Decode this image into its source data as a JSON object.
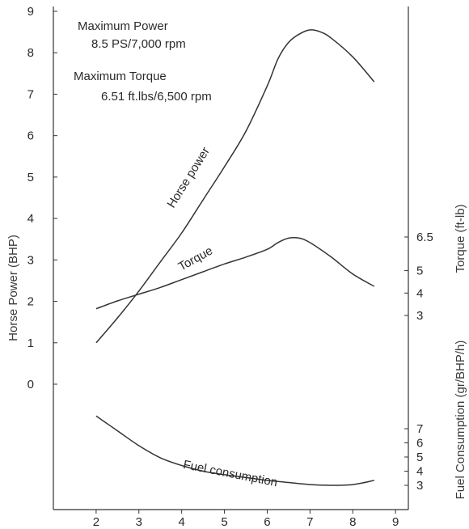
{
  "chart_data": {
    "type": "line",
    "x_axis": {
      "ticks": [
        "2",
        "3",
        "4",
        "5",
        "6",
        "7",
        "8",
        "9"
      ],
      "range": [
        1,
        9.3
      ]
    },
    "left_axis": {
      "label": "Horse Power (BHP)",
      "ticks": [
        "0",
        "1",
        "2",
        "3",
        "4",
        "5",
        "6",
        "7",
        "8",
        "9"
      ],
      "range": [
        0,
        9
      ]
    },
    "torque_axis": {
      "label": "Torque (ft-lb)",
      "ticks": [
        "3",
        "4",
        "5",
        "6.5"
      ],
      "range": [
        3,
        6.5
      ]
    },
    "fuel_axis": {
      "label": "Fuel Consumption (gr/BHP/h)",
      "ticks": [
        "3",
        "4",
        "5",
        "6",
        "7"
      ],
      "range": [
        3,
        7
      ]
    },
    "annotations": {
      "max_power_title": "Maximum Power",
      "max_power_value": "8.5 PS/7,000 rpm",
      "max_torque_title": "Maximum Torque",
      "max_torque_value": "6.51 ft.lbs/6,500 rpm"
    },
    "series": [
      {
        "name": "Horse power",
        "axis": "left",
        "x": [
          2,
          2.5,
          3,
          3.5,
          4,
          4.5,
          5,
          5.5,
          6,
          6.25,
          6.5,
          6.75,
          7,
          7.25,
          7.5,
          8,
          8.5
        ],
        "y": [
          1.0,
          1.6,
          2.25,
          2.95,
          3.65,
          4.45,
          5.25,
          6.1,
          7.2,
          7.85,
          8.25,
          8.45,
          8.55,
          8.5,
          8.35,
          7.9,
          7.3
        ]
      },
      {
        "name": "Torque",
        "axis": "torque",
        "x": [
          2,
          2.5,
          3,
          3.5,
          4,
          4.5,
          5,
          5.5,
          6,
          6.25,
          6.5,
          6.75,
          7,
          7.5,
          8,
          8.5
        ],
        "y": [
          3.3,
          3.65,
          3.95,
          4.25,
          4.6,
          4.95,
          5.3,
          5.6,
          5.95,
          6.25,
          6.45,
          6.45,
          6.25,
          5.6,
          4.85,
          4.3
        ]
      },
      {
        "name": "Fuel consumption",
        "axis": "fuel",
        "x": [
          2,
          2.5,
          3,
          3.5,
          4,
          4.5,
          5,
          5.5,
          6,
          6.5,
          7,
          7.5,
          8,
          8.5
        ],
        "y": [
          7.9,
          6.85,
          5.8,
          4.95,
          4.4,
          4.0,
          3.75,
          3.55,
          3.35,
          3.2,
          3.05,
          3.0,
          3.05,
          3.35
        ]
      }
    ]
  }
}
